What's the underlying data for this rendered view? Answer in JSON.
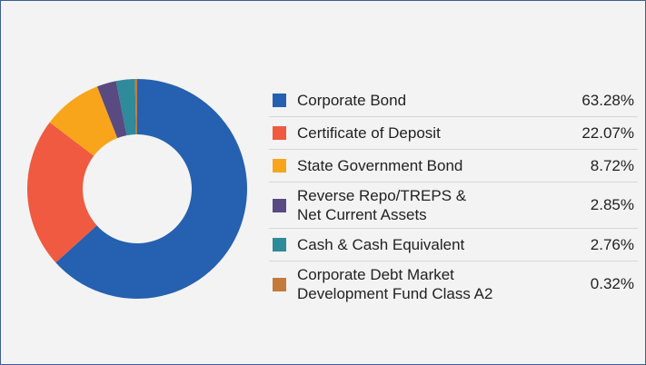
{
  "chart_data": {
    "type": "pie",
    "categories": [
      "Corporate Bond",
      "Certificate of Deposit",
      "State Government Bond",
      "Reverse Repo/TREPS &\nNet Current Assets",
      "Cash & Cash Equivalent",
      "Corporate Debt Market\nDevelopment Fund Class A2"
    ],
    "values": [
      63.28,
      22.07,
      8.72,
      2.85,
      2.76,
      0.32
    ],
    "value_labels": [
      "63.28%",
      "22.07%",
      "8.72%",
      "2.85%",
      "2.76%",
      "0.32%"
    ],
    "colors": [
      "#2660b0",
      "#f05a40",
      "#f8a51c",
      "#5a4a82",
      "#2f8a9a",
      "#c47a3a"
    ],
    "legend": "right"
  }
}
